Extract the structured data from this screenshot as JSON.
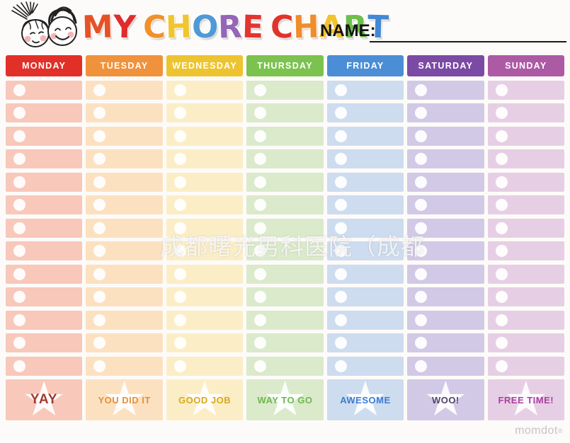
{
  "header": {
    "title_text": "MY CHORE CHART",
    "title_letters": [
      {
        "ch": "M",
        "color": "#e65226"
      },
      {
        "ch": "Y",
        "color": "#df2d2d"
      },
      {
        "ch": " ",
        "color": ""
      },
      {
        "ch": "C",
        "color": "#f0912d"
      },
      {
        "ch": "H",
        "color": "#f0c52e"
      },
      {
        "ch": "O",
        "color": "#4f9ad6"
      },
      {
        "ch": "R",
        "color": "#9565b7"
      },
      {
        "ch": "E",
        "color": "#e23531"
      },
      {
        "ch": " ",
        "color": ""
      },
      {
        "ch": "C",
        "color": "#df332c"
      },
      {
        "ch": "H",
        "color": "#ef8d2b"
      },
      {
        "ch": "A",
        "color": "#f2c230"
      },
      {
        "ch": "R",
        "color": "#6cbf4b"
      },
      {
        "ch": "T",
        "color": "#4488d3"
      }
    ],
    "name_label": "NAME:",
    "kids_icon": "two-kids-faces-illustration"
  },
  "watermark": {
    "text": "成都曙光男科医院（成都"
  },
  "chart": {
    "rows_per_column": 13,
    "columns": [
      {
        "day": "MONDAY",
        "header_color": "#e13028",
        "cell_color": "#f8c8bb",
        "footer_label": "YAY",
        "footer_text_color": "#a13a32"
      },
      {
        "day": "TUESDAY",
        "header_color": "#f0923b",
        "cell_color": "#fce1c1",
        "footer_label": "YOU DID IT",
        "footer_text_color": "#e2913d"
      },
      {
        "day": "WEDNESDAY",
        "header_color": "#edc42f",
        "cell_color": "#fbeec6",
        "footer_label": "GOOD JOB",
        "footer_text_color": "#d8a91e"
      },
      {
        "day": "THURSDAY",
        "header_color": "#7cc24f",
        "cell_color": "#daeacb",
        "footer_label": "WAY TO GO",
        "footer_text_color": "#6cb94c"
      },
      {
        "day": "FRIDAY",
        "header_color": "#4b8ed6",
        "cell_color": "#cddcef",
        "footer_label": "AWESOME",
        "footer_text_color": "#3c7cd0"
      },
      {
        "day": "SATURDAY",
        "header_color": "#7b4aa4",
        "cell_color": "#d2c9e6",
        "footer_label": "WOO!",
        "footer_text_color": "#4f4467"
      },
      {
        "day": "SUNDAY",
        "header_color": "#ad5aa5",
        "cell_color": "#e6cfe5",
        "footer_label": "FREE TIME!",
        "footer_text_color": "#aa3fa0"
      }
    ]
  },
  "footer": {
    "brand": "momdot",
    "brand_mark": "®"
  }
}
